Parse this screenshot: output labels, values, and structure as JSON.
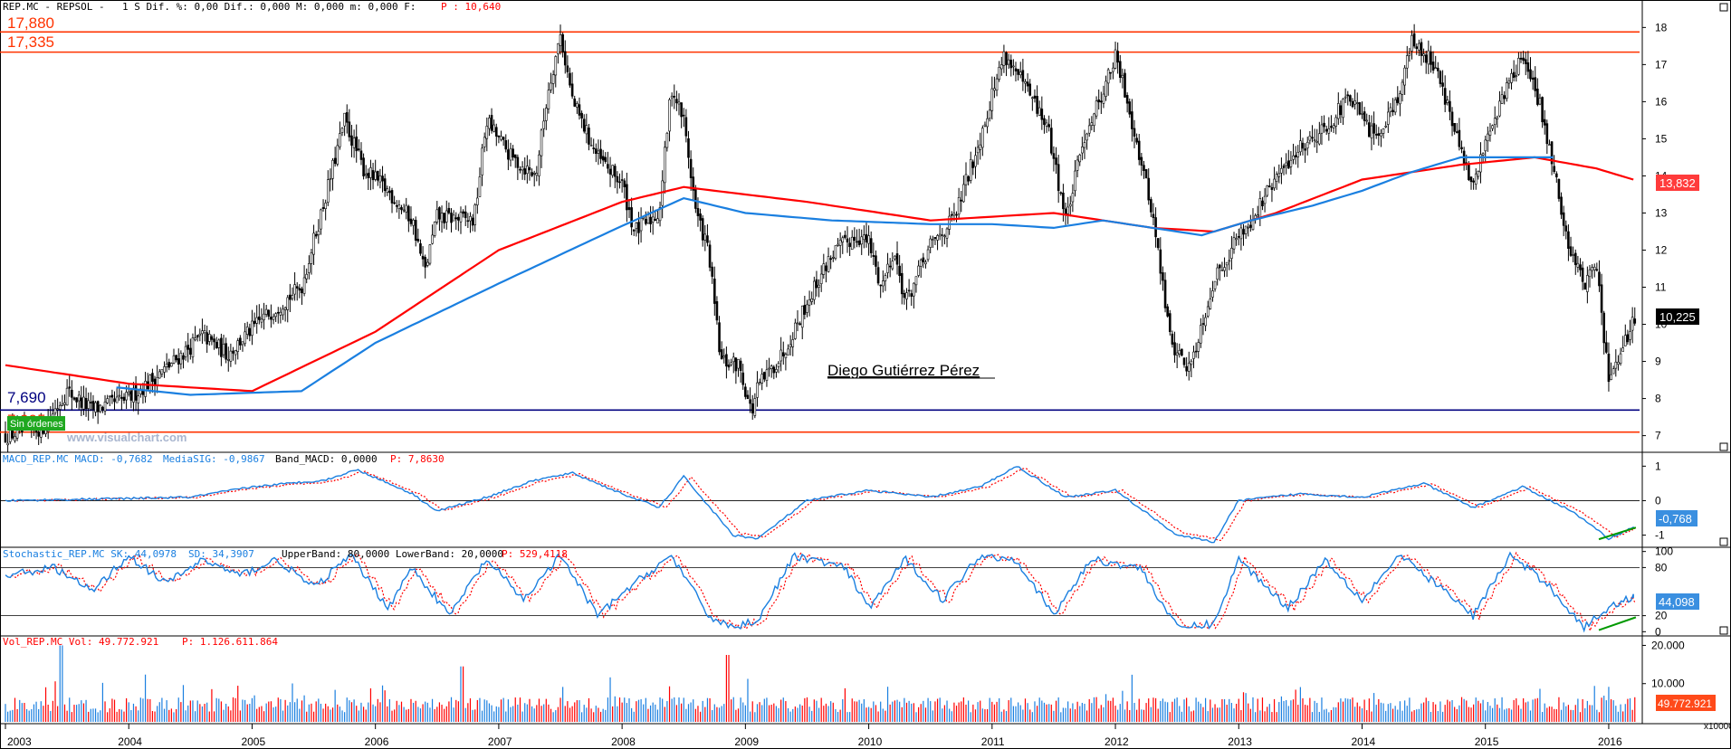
{
  "header": {
    "symbol": "REP.MC - REPSOL -",
    "info": "1 S Dif. %: 0,00 Dif.: 0,000 M: 0,000 m: 0,000 F:",
    "p_label": "P : 10,640"
  },
  "main_panel": {
    "levels": [
      {
        "label": "17,880",
        "value": 17.88,
        "color": "#ff3300"
      },
      {
        "label": "17,335",
        "value": 17.335,
        "color": "#ff3300"
      },
      {
        "label": "7,690",
        "value": 7.69,
        "color": "#000080"
      },
      {
        "label": "7,095",
        "value": 7.095,
        "color": "#ff3300"
      }
    ],
    "annotation": "Diego Gutiérrez Pérez",
    "watermark": "www.visualchart.com",
    "badge": "Sin órdenes",
    "price_tag": "10,225",
    "ma_tag": "13,832",
    "yticks": [
      "7",
      "8",
      "9",
      "10",
      "11",
      "12",
      "13",
      "14",
      "15",
      "16",
      "17",
      "18"
    ]
  },
  "macd_panel": {
    "title_a": "MACD_REP.MC MACD: -0,7682",
    "title_b": "MediaSIG: -0,9867",
    "title_c": "Band_MACD: 0,0000",
    "title_p": "P: 7,8630",
    "yticks": [
      "1",
      "0",
      "-1"
    ],
    "tag": "-0,768"
  },
  "stoch_panel": {
    "title_a": "Stochastic_REP.MC SK: 44,0978",
    "title_b": "SD: 34,3907",
    "title_c": "UpperBand: 80,0000 LowerBand: 20,0000",
    "title_p": "P: 529,4118",
    "yticks": [
      "100",
      "80",
      "20",
      "0"
    ],
    "tag": "44,098"
  },
  "vol_panel": {
    "title_a": "Vol_REP.MC Vol: 49.772.921",
    "title_p": "P: 1.126.611.864",
    "yticks": [
      "20.000",
      "10.000"
    ],
    "tag": "49.772.921",
    "multiplier": "x10000"
  },
  "x_axis": {
    "years": [
      "2003",
      "2004",
      "2005",
      "2006",
      "2007",
      "2008",
      "2009",
      "2010",
      "2011",
      "2012",
      "2013",
      "2014",
      "2015",
      "2016"
    ]
  },
  "colors": {
    "ma_long": "#ff0000",
    "ma_short": "#1a7fe0",
    "support": "#000080",
    "resistance": "#ff3300",
    "stoch_k": "#1a7fe0",
    "stoch_d": "#ff0000",
    "divergence": "#009900",
    "vol_up": "#1a7fe0",
    "vol_down": "#ff0000"
  },
  "chart_data": [
    {
      "type": "candlestick",
      "name": "REP.MC - REPSOL",
      "x_range": [
        "2003-01",
        "2016-03"
      ],
      "ylim": [
        7,
        18
      ],
      "close_series": [
        [
          2003.0,
          7.0
        ],
        [
          2003.3,
          7.2
        ],
        [
          2003.5,
          8.2
        ],
        [
          2003.7,
          7.7
        ],
        [
          2004.0,
          8.0
        ],
        [
          2004.3,
          8.8
        ],
        [
          2004.6,
          9.7
        ],
        [
          2004.8,
          9.2
        ],
        [
          2005.1,
          10.2
        ],
        [
          2005.4,
          11.0
        ],
        [
          2005.6,
          13.5
        ],
        [
          2005.75,
          15.5
        ],
        [
          2005.9,
          14.2
        ],
        [
          2006.1,
          13.6
        ],
        [
          2006.3,
          12.8
        ],
        [
          2006.4,
          11.4
        ],
        [
          2006.5,
          12.9
        ],
        [
          2006.8,
          12.8
        ],
        [
          2006.9,
          15.5
        ],
        [
          2007.1,
          14.5
        ],
        [
          2007.3,
          14.0
        ],
        [
          2007.4,
          16.3
        ],
        [
          2007.5,
          17.8
        ],
        [
          2007.6,
          16.0
        ],
        [
          2007.8,
          14.5
        ],
        [
          2008.0,
          13.8
        ],
        [
          2008.1,
          12.5
        ],
        [
          2008.3,
          13.0
        ],
        [
          2008.4,
          16.4
        ],
        [
          2008.5,
          15.5
        ],
        [
          2008.6,
          13.0
        ],
        [
          2008.7,
          12.0
        ],
        [
          2008.8,
          9.0
        ],
        [
          2008.95,
          8.9
        ],
        [
          2009.05,
          7.6
        ],
        [
          2009.1,
          8.3
        ],
        [
          2009.3,
          9.2
        ],
        [
          2009.5,
          10.6
        ],
        [
          2009.7,
          11.9
        ],
        [
          2009.9,
          12.4
        ],
        [
          2010.0,
          12.2
        ],
        [
          2010.1,
          11.0
        ],
        [
          2010.2,
          12.0
        ],
        [
          2010.3,
          10.6
        ],
        [
          2010.5,
          12.1
        ],
        [
          2010.7,
          12.9
        ],
        [
          2010.9,
          15.0
        ],
        [
          2011.0,
          16.2
        ],
        [
          2011.1,
          17.3
        ],
        [
          2011.3,
          16.2
        ],
        [
          2011.45,
          15.3
        ],
        [
          2011.6,
          12.8
        ],
        [
          2011.75,
          15.1
        ],
        [
          2011.9,
          16.3
        ],
        [
          2012.0,
          17.2
        ],
        [
          2012.1,
          16.0
        ],
        [
          2012.3,
          13.0
        ],
        [
          2012.45,
          9.5
        ],
        [
          2012.6,
          8.8
        ],
        [
          2012.8,
          11.2
        ],
        [
          2013.0,
          12.4
        ],
        [
          2013.1,
          12.8
        ],
        [
          2013.3,
          13.9
        ],
        [
          2013.5,
          14.8
        ],
        [
          2013.7,
          15.3
        ],
        [
          2013.9,
          16.1
        ],
        [
          2014.1,
          15.0
        ],
        [
          2014.3,
          16.2
        ],
        [
          2014.4,
          17.6
        ],
        [
          2014.6,
          17.0
        ],
        [
          2014.75,
          15.2
        ],
        [
          2014.9,
          13.6
        ],
        [
          2015.0,
          15.0
        ],
        [
          2015.2,
          16.6
        ],
        [
          2015.3,
          17.2
        ],
        [
          2015.45,
          15.8
        ],
        [
          2015.55,
          14.3
        ],
        [
          2015.65,
          12.4
        ],
        [
          2015.8,
          11.1
        ],
        [
          2015.9,
          11.6
        ],
        [
          2016.0,
          8.5
        ],
        [
          2016.1,
          9.1
        ],
        [
          2016.2,
          10.2
        ]
      ],
      "overlays": [
        {
          "type": "line",
          "name": "MA long",
          "points": [
            [
              2003.0,
              8.9
            ],
            [
              2004.0,
              8.4
            ],
            [
              2005.0,
              8.2
            ],
            [
              2006.0,
              9.8
            ],
            [
              2007.0,
              12.0
            ],
            [
              2008.0,
              13.3
            ],
            [
              2008.5,
              13.7
            ],
            [
              2009.5,
              13.3
            ],
            [
              2010.5,
              12.8
            ],
            [
              2011.5,
              13.0
            ],
            [
              2012.3,
              12.6
            ],
            [
              2012.8,
              12.5
            ],
            [
              2013.3,
              13.0
            ],
            [
              2014.0,
              13.9
            ],
            [
              2014.8,
              14.3
            ],
            [
              2015.4,
              14.5
            ],
            [
              2015.9,
              14.2
            ],
            [
              2016.2,
              13.9
            ]
          ]
        },
        {
          "type": "line",
          "name": "MA short",
          "points": [
            [
              2003.9,
              8.3
            ],
            [
              2004.5,
              8.1
            ],
            [
              2005.4,
              8.2
            ],
            [
              2006.0,
              9.5
            ],
            [
              2007.0,
              11.1
            ],
            [
              2007.9,
              12.5
            ],
            [
              2008.5,
              13.4
            ],
            [
              2009.0,
              13.0
            ],
            [
              2009.7,
              12.8
            ],
            [
              2010.5,
              12.7
            ],
            [
              2011.0,
              12.7
            ],
            [
              2011.5,
              12.6
            ],
            [
              2011.9,
              12.8
            ],
            [
              2012.3,
              12.6
            ],
            [
              2012.7,
              12.4
            ],
            [
              2013.1,
              12.8
            ],
            [
              2013.6,
              13.2
            ],
            [
              2014.0,
              13.6
            ],
            [
              2014.4,
              14.1
            ],
            [
              2014.8,
              14.5
            ],
            [
              2015.2,
              14.5
            ],
            [
              2015.55,
              14.5
            ]
          ]
        }
      ]
    },
    {
      "type": "line",
      "name": "MACD",
      "ylim": [
        -1.3,
        1.3
      ],
      "series": [
        {
          "values": [
            [
              2003.0,
              0.0
            ],
            [
              2003.8,
              0.05
            ],
            [
              2004.5,
              0.1
            ],
            [
              2005.0,
              0.4
            ],
            [
              2005.6,
              0.6
            ],
            [
              2005.85,
              0.9
            ],
            [
              2006.3,
              0.2
            ],
            [
              2006.5,
              -0.3
            ],
            [
              2006.9,
              0.1
            ],
            [
              2007.3,
              0.6
            ],
            [
              2007.6,
              0.8
            ],
            [
              2008.0,
              0.2
            ],
            [
              2008.3,
              -0.2
            ],
            [
              2008.5,
              0.7
            ],
            [
              2008.9,
              -1.0
            ],
            [
              2009.1,
              -1.1
            ],
            [
              2009.5,
              0.0
            ],
            [
              2010.0,
              0.3
            ],
            [
              2010.5,
              0.1
            ],
            [
              2010.9,
              0.4
            ],
            [
              2011.2,
              1.0
            ],
            [
              2011.6,
              0.1
            ],
            [
              2012.0,
              0.3
            ],
            [
              2012.5,
              -1.0
            ],
            [
              2012.8,
              -1.2
            ],
            [
              2013.0,
              0.0
            ],
            [
              2013.5,
              0.2
            ],
            [
              2014.0,
              0.1
            ],
            [
              2014.5,
              0.5
            ],
            [
              2014.9,
              -0.2
            ],
            [
              2015.3,
              0.4
            ],
            [
              2015.7,
              -0.3
            ],
            [
              2016.0,
              -1.1
            ],
            [
              2016.2,
              -0.77
            ]
          ]
        }
      ]
    },
    {
      "type": "line",
      "name": "Stochastic",
      "ylim": [
        0,
        100
      ],
      "series": [
        {
          "values": [
            [
              2003.0,
              70
            ],
            [
              2003.4,
              80
            ],
            [
              2003.7,
              50
            ],
            [
              2004.0,
              95
            ],
            [
              2004.3,
              60
            ],
            [
              2004.6,
              90
            ],
            [
              2004.9,
              70
            ],
            [
              2005.2,
              90
            ],
            [
              2005.5,
              55
            ],
            [
              2005.8,
              95
            ],
            [
              2006.1,
              30
            ],
            [
              2006.3,
              80
            ],
            [
              2006.6,
              20
            ],
            [
              2006.9,
              90
            ],
            [
              2007.2,
              40
            ],
            [
              2007.5,
              95
            ],
            [
              2007.8,
              20
            ],
            [
              2008.1,
              60
            ],
            [
              2008.4,
              95
            ],
            [
              2008.7,
              20
            ],
            [
              2008.9,
              5
            ],
            [
              2009.1,
              15
            ],
            [
              2009.4,
              95
            ],
            [
              2009.8,
              80
            ],
            [
              2010.0,
              30
            ],
            [
              2010.3,
              90
            ],
            [
              2010.6,
              40
            ],
            [
              2010.9,
              95
            ],
            [
              2011.2,
              90
            ],
            [
              2011.5,
              20
            ],
            [
              2011.8,
              90
            ],
            [
              2012.2,
              80
            ],
            [
              2012.5,
              5
            ],
            [
              2012.8,
              10
            ],
            [
              2013.0,
              90
            ],
            [
              2013.4,
              30
            ],
            [
              2013.7,
              90
            ],
            [
              2014.0,
              40
            ],
            [
              2014.3,
              95
            ],
            [
              2014.6,
              60
            ],
            [
              2014.9,
              20
            ],
            [
              2015.2,
              95
            ],
            [
              2015.5,
              60
            ],
            [
              2015.8,
              5
            ],
            [
              2016.0,
              30
            ],
            [
              2016.2,
              44
            ]
          ]
        }
      ]
    },
    {
      "type": "bar",
      "name": "Volume",
      "unit": "x10000",
      "ylim": [
        0,
        22000
      ],
      "values_note": "weekly volume bars"
    }
  ]
}
